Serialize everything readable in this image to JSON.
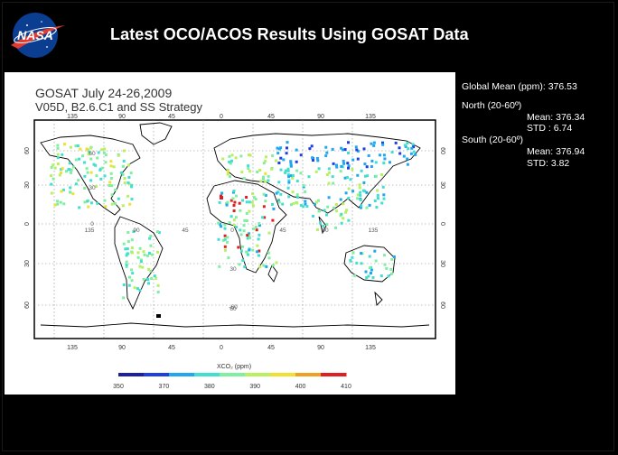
{
  "header": {
    "title": "Latest OCO/ACOS Results Using GOSAT Data",
    "logo_text": "NASA"
  },
  "map": {
    "heading_line1": "GOSAT July 24-26,2009",
    "heading_line2": "V05D, B2.6.C1  and SS Strategy",
    "lon_ticks": [
      "135",
      "90",
      "45",
      "0",
      "45",
      "90",
      "135"
    ],
    "lat_ticks": [
      "60",
      "30",
      "0",
      "30",
      "60"
    ],
    "grid_labels": [
      {
        "text": "135"
      },
      {
        "text": "90"
      },
      {
        "text": "45"
      },
      {
        "text": "0"
      },
      {
        "text": "45"
      },
      {
        "text": "90"
      },
      {
        "text": "135"
      },
      {
        "text": "60"
      },
      {
        "text": "30"
      },
      {
        "text": "0"
      },
      {
        "text": "30"
      },
      {
        "text": "60"
      },
      {
        "text": "-60"
      }
    ],
    "colorbar_label": "XCO₂ (ppm)",
    "colorbar_ticks": [
      "350",
      "370",
      "380",
      "390",
      "400",
      "410"
    ],
    "colorbar_colors": [
      "#1e1ea0",
      "#1f3fe0",
      "#1fa8f0",
      "#40e0d0",
      "#7ff0a0",
      "#b8f060",
      "#f0e030",
      "#f0a020",
      "#e02020"
    ]
  },
  "stats": {
    "global": "Global Mean (ppm): 376.53",
    "north_title": "North (20-60º)",
    "north_mean": "Mean:  376.34",
    "north_std": "STD :   6.74",
    "south_title": "South (20-60º)",
    "south_mean": "Mean: 376.94",
    "south_std": "STD:  3.82"
  }
}
